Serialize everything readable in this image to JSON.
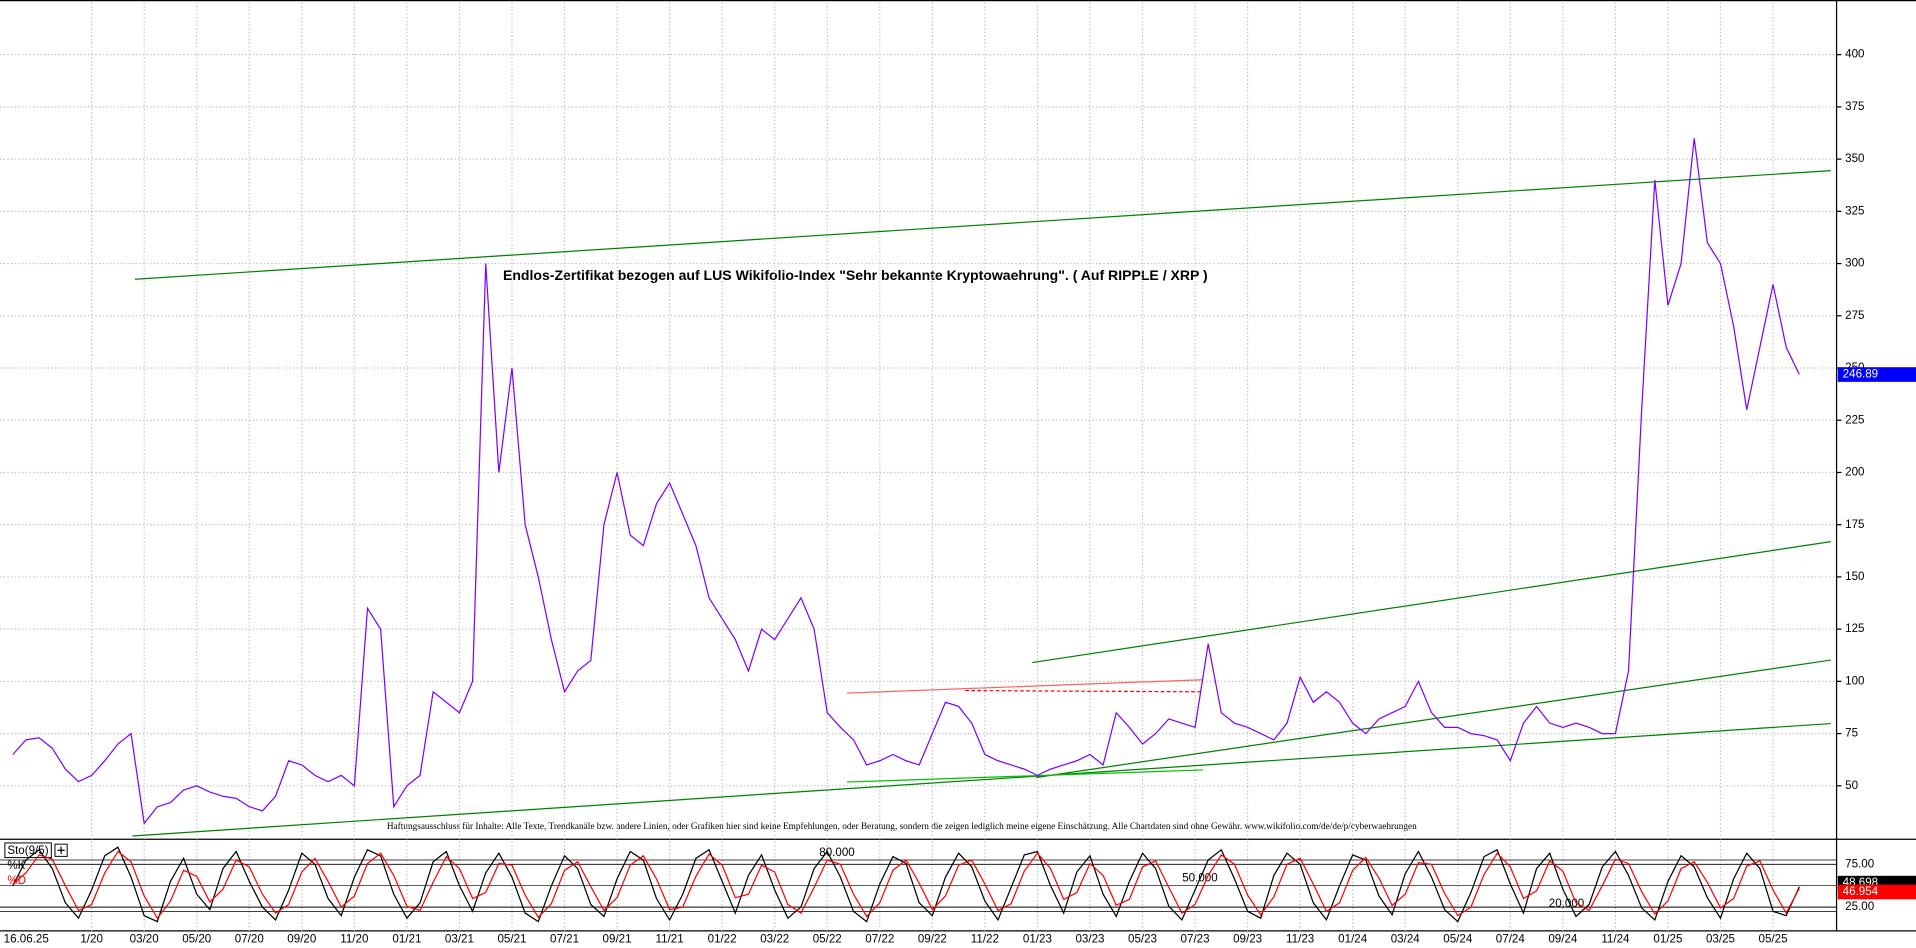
{
  "chart_data": {
    "type": "line",
    "title": "Endlos-Zertifikat bezogen auf LUS Wikifolio-Index \"Sehr bekannte Kryptowaehrung\". ( Auf RIPPLE / XRP )",
    "annotation": "Haftungsausschluss für Inhalte: Alle Texte, Trendkanäle bzw. andere Linien, oder Grafiken hier sind keine Empfehlungen, oder Beratung, sondern die zeigen lediglich meine eigene Einschätzung. Alle Chartdaten sind ohne Gewähr. www.wikifolio.com/de/de/p/cyberwaehrungen",
    "date_label": "16.06.25",
    "categories": [
      null,
      null,
      null,
      null,
      null,
      null,
      "1/20",
      null,
      null,
      null,
      "03/20",
      null,
      null,
      null,
      "05/20",
      null,
      null,
      null,
      "07/20",
      null,
      null,
      null,
      "09/20",
      null,
      null,
      null,
      "11/20",
      null,
      null,
      null,
      "01/21",
      null,
      null,
      null,
      "03/21",
      null,
      null,
      null,
      "05/21",
      null,
      null,
      null,
      "07/21",
      null,
      null,
      null,
      "09/21",
      null,
      null,
      null,
      "11/21",
      null,
      null,
      null,
      "01/22",
      null,
      null,
      null,
      "03/22",
      null,
      null,
      null,
      "05/22",
      null,
      null,
      null,
      "07/22",
      null,
      null,
      null,
      "09/22",
      null,
      null,
      null,
      "11/22",
      null,
      null,
      null,
      "01/23",
      null,
      null,
      null,
      "03/23",
      null,
      null,
      null,
      "05/23",
      null,
      null,
      null,
      "07/23",
      null,
      null,
      null,
      "09/23",
      null,
      null,
      null,
      "11/23",
      null,
      null,
      null,
      "01/24",
      null,
      null,
      null,
      "03/24",
      null,
      null,
      null,
      "05/24",
      null,
      null,
      null,
      "07/24",
      null,
      null,
      null,
      "09/24",
      null,
      null,
      null,
      "11/24",
      null,
      null,
      null,
      "01/25",
      null,
      null,
      null,
      "03/25",
      null,
      null,
      null,
      "05/25",
      null,
      null
    ],
    "series": [
      {
        "color": "#8000ff",
        "values": [
          65,
          72,
          73,
          68,
          58,
          52,
          55,
          62,
          70,
          75,
          32,
          40,
          42,
          48,
          50,
          47,
          45,
          44,
          40,
          38,
          45,
          62,
          60,
          55,
          52,
          55,
          50,
          135,
          125,
          40,
          50,
          55,
          95,
          90,
          85,
          100,
          300,
          200,
          250,
          175,
          150,
          120,
          95,
          105,
          110,
          175,
          200,
          170,
          165,
          185,
          195,
          180,
          165,
          140,
          130,
          120,
          105,
          125,
          120,
          130,
          140,
          125,
          85,
          78,
          72,
          60,
          62,
          65,
          62,
          60,
          75,
          90,
          88,
          80,
          65,
          62,
          60,
          58,
          55,
          58,
          60,
          62,
          65,
          60,
          85,
          78,
          70,
          75,
          82,
          80,
          78,
          118,
          85,
          80,
          78,
          75,
          72,
          80,
          102,
          90,
          95,
          90,
          80,
          75,
          82,
          85,
          88,
          100,
          85,
          78,
          78,
          75,
          74,
          72,
          62,
          80,
          88,
          80,
          78,
          80,
          78,
          75,
          75,
          105,
          230,
          340,
          280,
          300,
          360,
          310,
          300,
          270,
          230,
          260,
          290,
          260,
          246.89
        ]
      }
    ],
    "ylim": [
      25,
      425
    ],
    "yticks": [
      50,
      75,
      100,
      125,
      150,
      175,
      200,
      225,
      250,
      275,
      300,
      325,
      350,
      375,
      400
    ],
    "grid": true,
    "trendlines": [
      {
        "color": "#008000",
        "x": [
          9.3,
          138.4
        ],
        "y": [
          292.5,
          344.5
        ]
      },
      {
        "color": "#008000",
        "x": [
          9.1,
          138.4
        ],
        "y": [
          26,
          79.8
        ]
      },
      {
        "color": "#008000",
        "x": [
          77.6,
          138.4
        ],
        "y": [
          109,
          166.9
        ]
      },
      {
        "color": "#008000",
        "x": [
          77.9,
          138.4
        ],
        "y": [
          54,
          110.2
        ]
      },
      {
        "color": "#00c000",
        "x": [
          63.5,
          90.6
        ],
        "y": [
          51.8,
          57.6
        ]
      },
      {
        "color": "#ff6060",
        "x": [
          63.5,
          90.6
        ],
        "y": [
          94.4,
          100.8
        ]
      },
      {
        "color": "#ff0000",
        "x": [
          72.5,
          90.6
        ],
        "y": [
          95.6,
          95
        ],
        "dashed": true
      }
    ],
    "indicator": {
      "type": "line",
      "label": "Sto(9/5)",
      "ylim": [
        0,
        100
      ],
      "yticks": [
        {
          "value": 25,
          "label": "25.00"
        },
        {
          "value": 75,
          "label": "75.00"
        }
      ],
      "levels": [
        {
          "value": 80,
          "label": "80.000"
        },
        {
          "value": 50,
          "label": "50.000"
        },
        {
          "value": 20,
          "label": "20.000"
        }
      ],
      "series": [
        {
          "name": "%K",
          "color": "#000000",
          "values": [
            50,
            80,
            92,
            70,
            30,
            12,
            45,
            85,
            95,
            60,
            15,
            8,
            55,
            82,
            40,
            22,
            70,
            90,
            55,
            25,
            10,
            45,
            88,
            75,
            35,
            15,
            60,
            92,
            85,
            40,
            12,
            30,
            78,
            90,
            50,
            20,
            65,
            88,
            60,
            18,
            8,
            50,
            85,
            70,
            28,
            14,
            58,
            90,
            80,
            35,
            10,
            40,
            82,
            92,
            55,
            18,
            62,
            86,
            45,
            12,
            25,
            70,
            90,
            60,
            20,
            8,
            52,
            84,
            76,
            30,
            15,
            60,
            88,
            72,
            32,
            10,
            48,
            86,
            90,
            50,
            18,
            66,
            85,
            40,
            14,
            55,
            88,
            70,
            26,
            10,
            45,
            80,
            92,
            58,
            20,
            12,
            62,
            88,
            75,
            30,
            10,
            50,
            86,
            80,
            38,
            16,
            64,
            90,
            60,
            22,
            8,
            42,
            84,
            92,
            52,
            18,
            70,
            88,
            46,
            14,
            28,
            72,
            90,
            62,
            24,
            10,
            55,
            85,
            72,
            36,
            12,
            58,
            88,
            70,
            20,
            15,
            48.698
          ]
        },
        {
          "name": "%D",
          "color": "#ff0000",
          "values": [
            52,
            65,
            86,
            81,
            50,
            21,
            28,
            65,
            90,
            78,
            38,
            12,
            32,
            68,
            61,
            31,
            46,
            80,
            72,
            40,
            18,
            28,
            66,
            82,
            55,
            25,
            38,
            76,
            88,
            62,
            26,
            21,
            54,
            84,
            70,
            35,
            42,
            76,
            74,
            39,
            13,
            29,
            68,
            78,
            49,
            21,
            36,
            74,
            85,
            58,
            22,
            25,
            61,
            87,
            74,
            36,
            40,
            74,
            66,
            28,
            18,
            48,
            80,
            75,
            40,
            14,
            30,
            68,
            80,
            53,
            22,
            38,
            74,
            80,
            52,
            21,
            29,
            67,
            88,
            70,
            34,
            42,
            76,
            62,
            27,
            34,
            72,
            79,
            48,
            18,
            28,
            62,
            86,
            75,
            39,
            16,
            37,
            75,
            82,
            52,
            20,
            30,
            68,
            83,
            59,
            27,
            40,
            77,
            75,
            41,
            15,
            25,
            63,
            88,
            72,
            35,
            44,
            79,
            67,
            30,
            21,
            50,
            81,
            76,
            43,
            17,
            32,
            70,
            78,
            54,
            24,
            35,
            73,
            79,
            45,
            18,
            46.954
          ]
        }
      ]
    }
  }
}
